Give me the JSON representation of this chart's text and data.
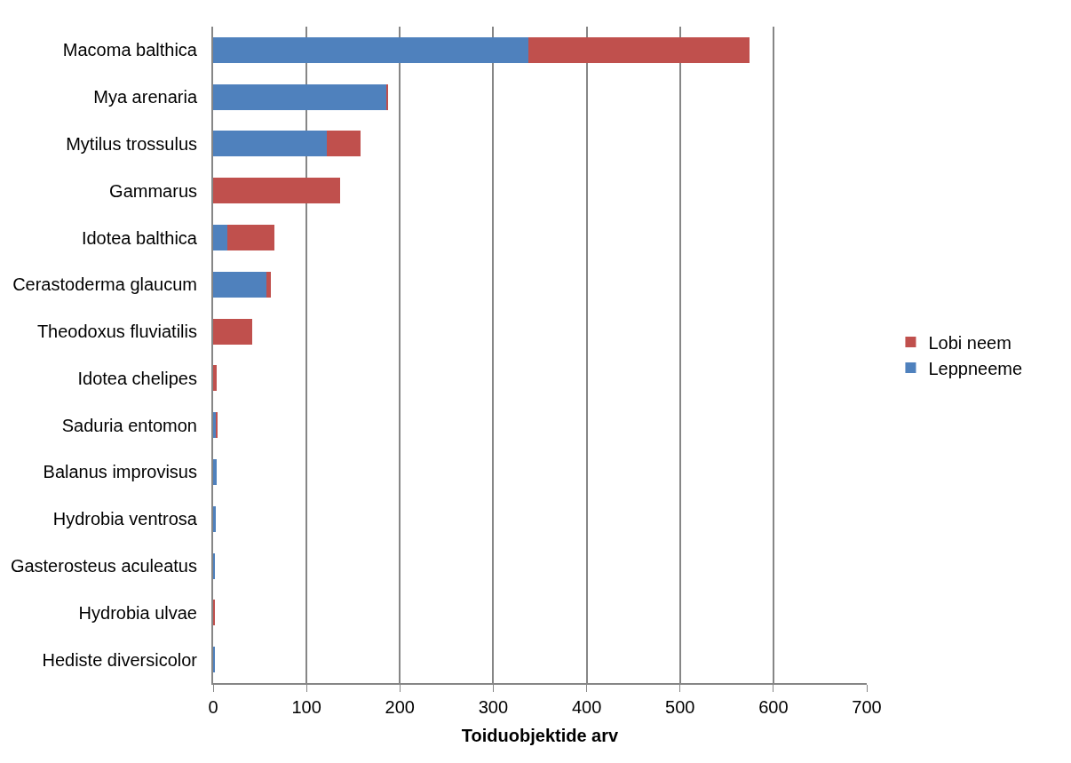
{
  "chart_data": {
    "type": "bar",
    "orientation": "horizontal",
    "stacked": true,
    "xlabel": "Toiduobjektide arv",
    "categories": [
      "Macoma balthica",
      "Mya arenaria",
      "Mytilus trossulus",
      "Gammarus",
      "Idotea balthica",
      "Cerastoderma glaucum",
      "Theodoxus fluviatilis",
      "Idotea chelipes",
      "Saduria entomon",
      "Balanus improvisus",
      "Hydrobia ventrosa",
      "Gasterosteus aculeatus",
      "Hydrobia ulvae",
      "Hediste diversicolor"
    ],
    "series": [
      {
        "name": "Leppneeme",
        "color": "#4f81bd",
        "values": [
          338,
          186,
          122,
          0,
          15,
          57,
          0,
          0,
          3,
          4,
          3,
          2,
          0,
          1
        ]
      },
      {
        "name": "Lobi neem",
        "color": "#c0504d",
        "values": [
          236,
          1,
          36,
          136,
          51,
          5,
          42,
          4,
          1,
          0,
          0,
          0,
          1,
          0
        ]
      }
    ],
    "xlim": [
      0,
      700
    ],
    "xticks": [
      0,
      100,
      200,
      300,
      400,
      500,
      600,
      700
    ],
    "grid": "x",
    "legend": "right"
  }
}
